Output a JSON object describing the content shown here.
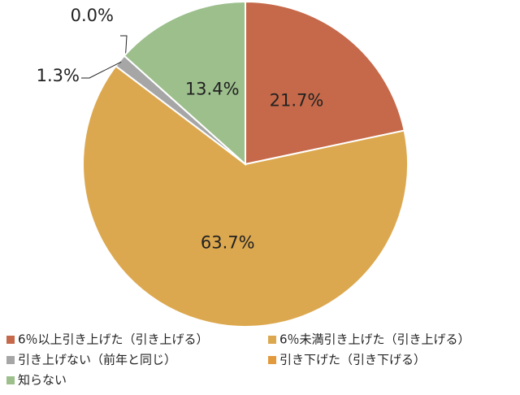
{
  "chart_data": {
    "type": "pie",
    "categories": [
      "6％以上引き上げた（引き上げる）",
      "6％未満引き上げた（引き上げる）",
      "引き上げない（前年と同じ）",
      "引き下げた（引き下げる）",
      "知らない"
    ],
    "values": [
      21.7,
      63.7,
      1.3,
      0.0,
      13.4
    ],
    "value_labels": [
      "21.7%",
      "63.7%",
      "1.3%",
      "0.0%",
      "13.4%"
    ],
    "colors": [
      "#c5694a",
      "#dca84f",
      "#a6a6a6",
      "#e39a3e",
      "#9cbf8c"
    ]
  }
}
